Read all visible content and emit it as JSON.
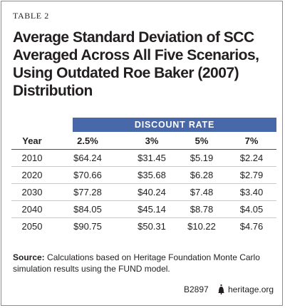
{
  "table_label": "TABLE 2",
  "title": "Average Standard Deviation of SCC Averaged Across All Five Scenarios, Using Outdated Roe Baker (2007) Distribution",
  "band_label": "DISCOUNT RATE",
  "columns": [
    "Year",
    "2.5%",
    "3%",
    "5%",
    "7%"
  ],
  "rows": [
    [
      "2010",
      "$64.24",
      "$31.45",
      "$5.19",
      "$2.24"
    ],
    [
      "2020",
      "$70.66",
      "$35.68",
      "$6.28",
      "$2.79"
    ],
    [
      "2030",
      "$77.28",
      "$40.24",
      "$7.48",
      "$3.40"
    ],
    [
      "2040",
      "$84.05",
      "$45.14",
      "$8.78",
      "$4.05"
    ],
    [
      "2050",
      "$90.75",
      "$50.31",
      "$10.22",
      "$4.76"
    ]
  ],
  "source_label": "Source:",
  "source_text": "Calculations based on Heritage Foundation Monte Carlo simulation results using the FUND model.",
  "chart_code": "B2897",
  "site": "heritage.org",
  "colors": {
    "band": "#4968a9",
    "text": "#231f20"
  },
  "icons": {
    "site_logo": "liberty-bell-icon"
  }
}
